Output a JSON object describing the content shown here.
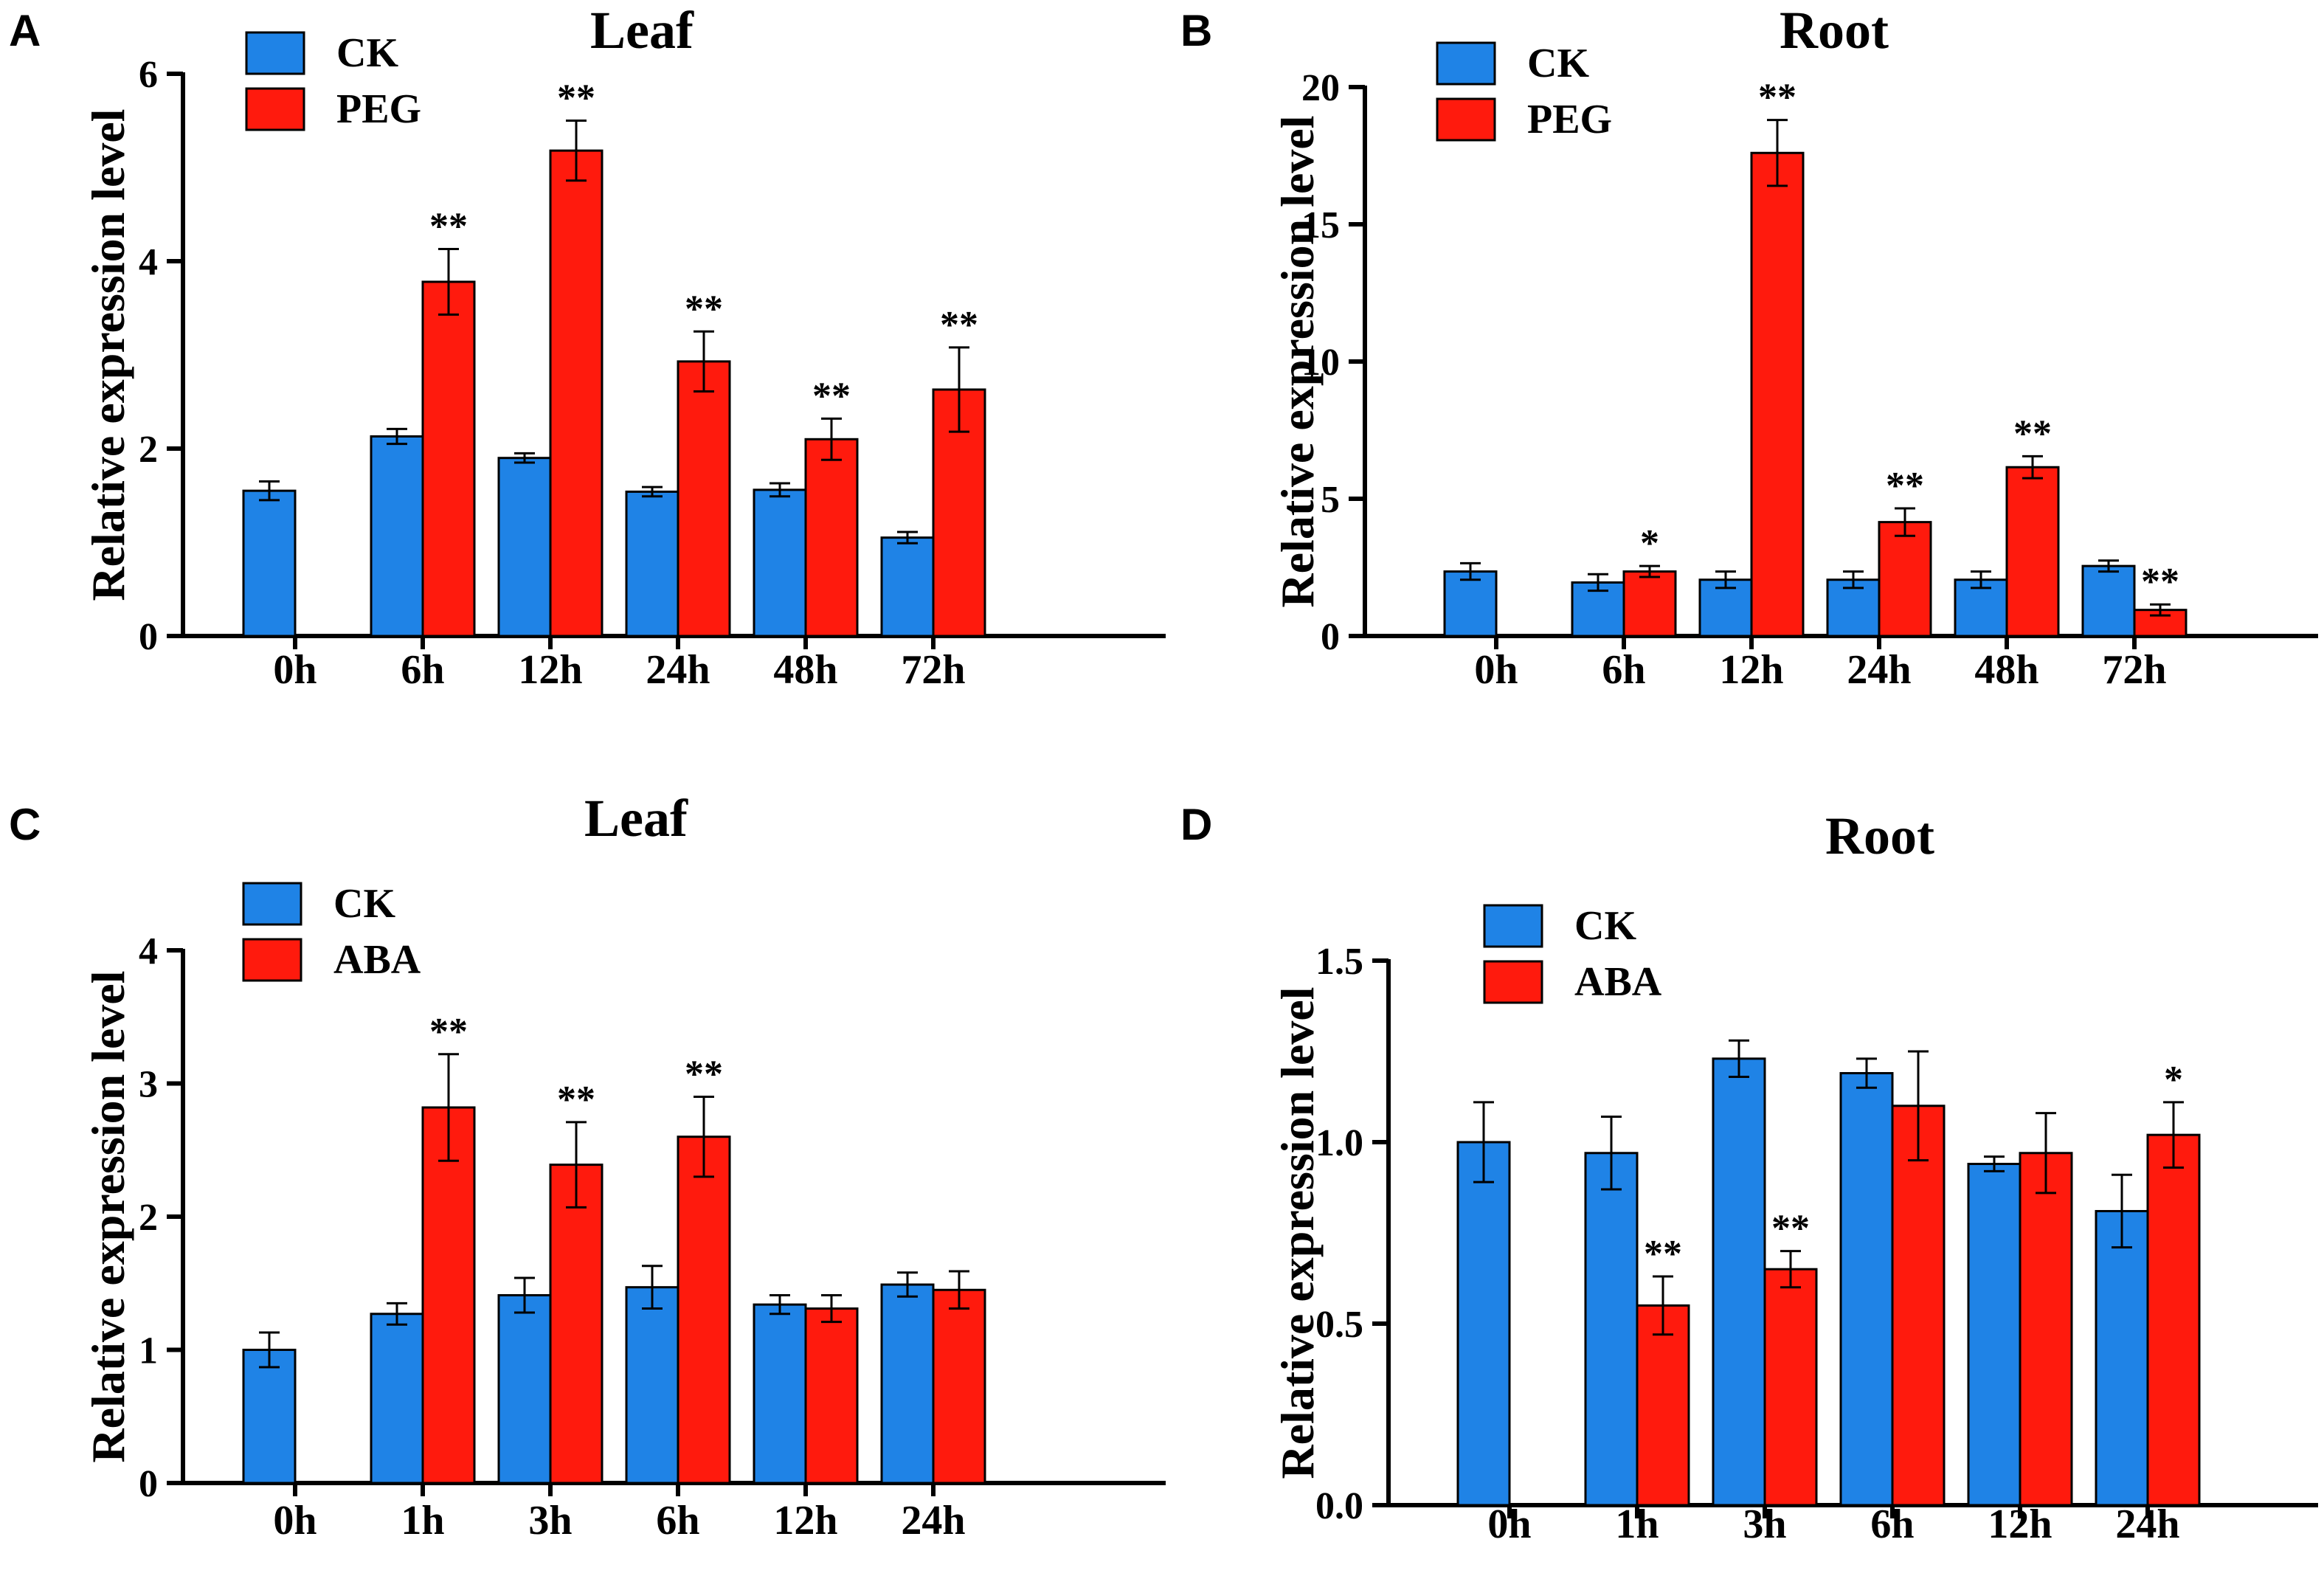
{
  "colors": {
    "ck": "#1f83e6",
    "treatment": "#ff1a0d",
    "axis": "#000000"
  },
  "chart_data": [
    {
      "panel": "A",
      "type": "bar",
      "title": "Leaf",
      "ylabel": "Relative  expression level",
      "xlabel": "",
      "ylim": [
        0,
        6
      ],
      "yticks": [
        0,
        2,
        4,
        6
      ],
      "ytick_labels": [
        "0",
        "2",
        "4",
        "6"
      ],
      "categories": [
        "0h",
        "6h",
        "12h",
        "24h",
        "48h",
        "72h"
      ],
      "legend_position": "top-left",
      "series": [
        {
          "name": "CK",
          "color_key": "ck",
          "values": [
            1.55,
            2.13,
            1.9,
            1.54,
            1.56,
            1.05
          ],
          "errors": [
            0.1,
            0.08,
            0.05,
            0.05,
            0.07,
            0.06
          ]
        },
        {
          "name": "PEG",
          "color_key": "treatment",
          "values": [
            null,
            3.78,
            5.18,
            2.93,
            2.1,
            2.63
          ],
          "errors": [
            null,
            0.35,
            0.32,
            0.32,
            0.22,
            0.45
          ]
        }
      ],
      "annotations": [
        "",
        "**",
        "**",
        "**",
        "**",
        "**"
      ]
    },
    {
      "panel": "B",
      "type": "bar",
      "title": "Root",
      "ylabel": "Relative  expression level",
      "xlabel": "",
      "ylim": [
        0,
        20
      ],
      "yticks": [
        0,
        5,
        10,
        15,
        20
      ],
      "ytick_labels": [
        "0",
        "5",
        "10",
        "15",
        "20"
      ],
      "categories": [
        "0h",
        "6h",
        "12h",
        "24h",
        "48h",
        "72h"
      ],
      "legend_position": "top-left",
      "series": [
        {
          "name": "CK",
          "color_key": "ck",
          "values": [
            2.35,
            1.95,
            2.05,
            2.05,
            2.05,
            2.55
          ],
          "errors": [
            0.3,
            0.3,
            0.3,
            0.3,
            0.3,
            0.2
          ]
        },
        {
          "name": "PEG",
          "color_key": "treatment",
          "values": [
            null,
            2.35,
            17.6,
            4.15,
            6.15,
            0.95
          ],
          "errors": [
            null,
            0.2,
            1.2,
            0.5,
            0.4,
            0.2
          ]
        }
      ],
      "annotations": [
        "",
        "*",
        "**",
        "**",
        "**",
        "**"
      ]
    },
    {
      "panel": "C",
      "type": "bar",
      "title": "Leaf",
      "ylabel": "Relative  expression level",
      "xlabel": "",
      "ylim": [
        0,
        4
      ],
      "yticks": [
        0,
        1,
        2,
        3,
        4
      ],
      "ytick_labels": [
        "0",
        "1",
        "2",
        "3",
        "4"
      ],
      "categories": [
        "0h",
        "1h",
        "3h",
        "6h",
        "12h",
        "24h"
      ],
      "legend_position": "top-left",
      "series": [
        {
          "name": "CK",
          "color_key": "ck",
          "values": [
            1.0,
            1.27,
            1.41,
            1.47,
            1.34,
            1.49
          ],
          "errors": [
            0.13,
            0.08,
            0.13,
            0.16,
            0.07,
            0.09
          ]
        },
        {
          "name": "ABA",
          "color_key": "treatment",
          "values": [
            null,
            2.82,
            2.39,
            2.6,
            1.31,
            1.45
          ],
          "errors": [
            null,
            0.4,
            0.32,
            0.3,
            0.1,
            0.14
          ]
        }
      ],
      "annotations": [
        "",
        "**",
        "**",
        "**",
        "",
        ""
      ]
    },
    {
      "panel": "D",
      "type": "bar",
      "title": "Root",
      "ylabel": "Relative  expression level",
      "xlabel": "",
      "ylim": [
        0,
        1.5
      ],
      "yticks": [
        0,
        0.5,
        1.0,
        1.5
      ],
      "ytick_labels": [
        "0.0",
        "0.5",
        "1.0",
        "1.5"
      ],
      "categories": [
        "0h",
        "1h",
        "3h",
        "6h",
        "12h",
        "24h"
      ],
      "legend_position": "top-left",
      "series": [
        {
          "name": "CK",
          "color_key": "ck",
          "values": [
            1.0,
            0.97,
            1.23,
            1.19,
            0.94,
            0.81
          ],
          "errors": [
            0.11,
            0.1,
            0.05,
            0.04,
            0.02,
            0.1
          ]
        },
        {
          "name": "ABA",
          "color_key": "treatment",
          "values": [
            null,
            0.55,
            0.65,
            1.1,
            0.97,
            1.02
          ],
          "errors": [
            null,
            0.08,
            0.05,
            0.15,
            0.11,
            0.09
          ]
        }
      ],
      "annotations": [
        "",
        "**",
        "**",
        "",
        "",
        "*"
      ]
    }
  ]
}
